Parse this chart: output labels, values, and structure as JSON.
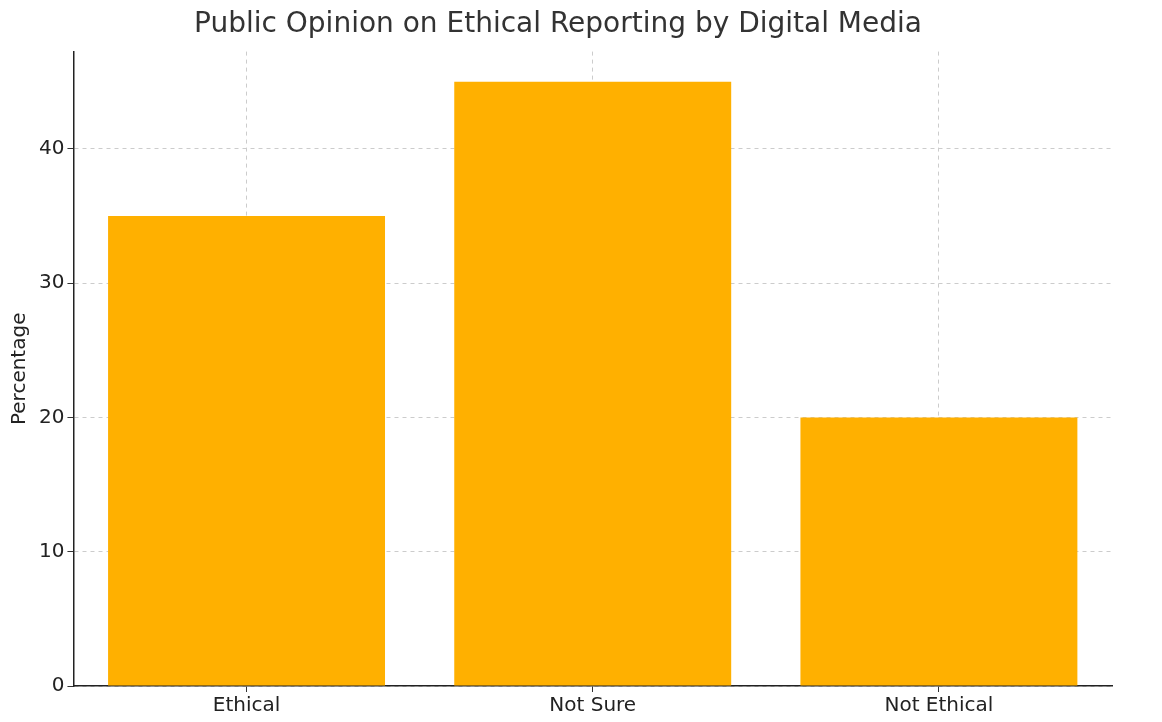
{
  "chart_data": {
    "type": "bar",
    "title": "Public Opinion on Ethical Reporting by Digital Media",
    "ylabel": "Percentage",
    "categories": [
      "Ethical",
      "Not Sure",
      "Not Ethical"
    ],
    "values": [
      35,
      45,
      20
    ],
    "color": "#ffb000",
    "ylim": [
      0,
      47.25
    ],
    "yticks": [
      0,
      10,
      20,
      30,
      40
    ],
    "grid": true
  }
}
